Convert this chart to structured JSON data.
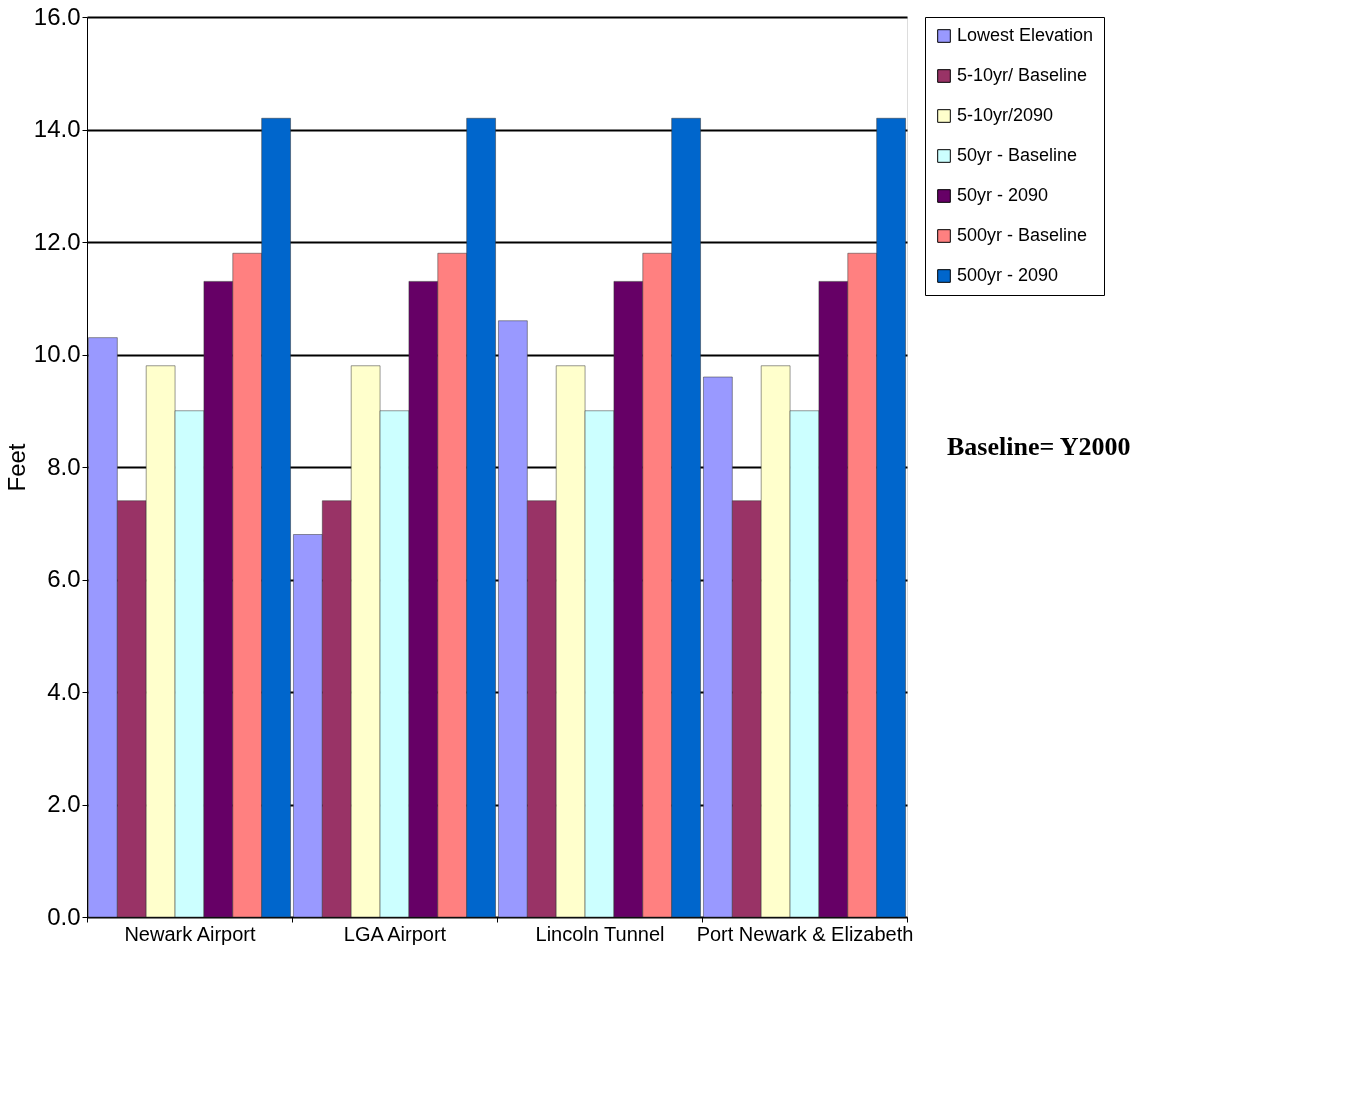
{
  "chart_data": {
    "type": "bar",
    "categories": [
      "Newark Airport",
      "LGA Airport",
      "Lincoln Tunnel",
      "Port Newark & Elizabeth"
    ],
    "ylabel": "Feet",
    "series": [
      {
        "name": "Lowest Elevation",
        "color": "#9999ff",
        "values": [
          10.3,
          6.8,
          10.6,
          9.6
        ]
      },
      {
        "name": "5-10yr/ Baseline",
        "color": "#993366",
        "values": [
          7.4,
          7.4,
          7.4,
          7.4
        ]
      },
      {
        "name": "5-10yr/2090",
        "color": "#ffffcc",
        "values": [
          9.8,
          9.8,
          9.8,
          9.8
        ]
      },
      {
        "name": "50yr - Baseline",
        "color": "#ccffff",
        "values": [
          9.0,
          9.0,
          9.0,
          9.0
        ]
      },
      {
        "name": "50yr - 2090",
        "color": "#660066",
        "values": [
          11.3,
          11.3,
          11.3,
          11.3
        ]
      },
      {
        "name": "500yr - Baseline",
        "color": "#ff8080",
        "values": [
          11.8,
          11.8,
          11.8,
          11.8
        ]
      },
      {
        "name": "500yr - 2090",
        "color": "#0066cc",
        "values": [
          14.2,
          14.2,
          14.2,
          14.2
        ]
      }
    ],
    "ylim": [
      0,
      16
    ],
    "yticks": [
      {
        "value": 0,
        "label": "0.0"
      },
      {
        "value": 2,
        "label": "2.0"
      },
      {
        "value": 4,
        "label": "4.0"
      },
      {
        "value": 6,
        "label": "6.0"
      },
      {
        "value": 8,
        "label": "8.0"
      },
      {
        "value": 10,
        "label": "10.0"
      },
      {
        "value": 12,
        "label": "12.0"
      },
      {
        "value": 14,
        "label": "14.0"
      },
      {
        "value": 16,
        "label": "16.0"
      }
    ],
    "grid": "y",
    "legend": "right",
    "annotations": [
      "Baseline= Y2000"
    ]
  }
}
